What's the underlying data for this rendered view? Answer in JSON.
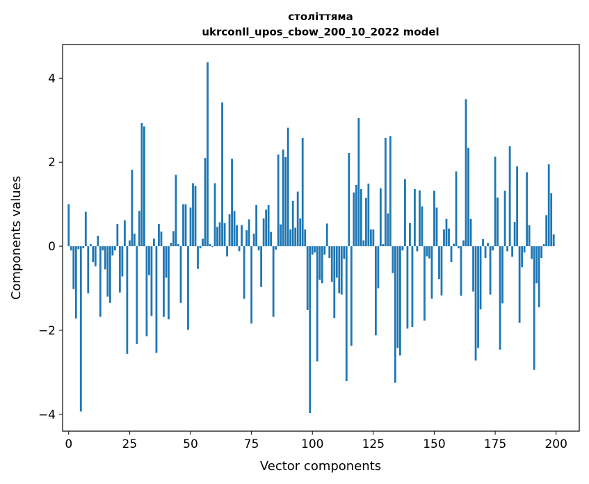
{
  "chart_data": {
    "type": "bar",
    "title_line1": "століттяма",
    "title_line2": "ukrconll_upos_cbow_200_10_2022 model",
    "xlabel": "Vector components",
    "ylabel": "Components values",
    "xlim": [
      -2.5,
      209.5
    ],
    "ylim": [
      -4.4,
      4.8
    ],
    "xticks": [
      0,
      25,
      50,
      75,
      100,
      125,
      150,
      175,
      200
    ],
    "yticks": [
      -4,
      -2,
      0,
      2,
      4
    ],
    "xtick_labels": [
      "0",
      "25",
      "50",
      "75",
      "100",
      "125",
      "150",
      "175",
      "200"
    ],
    "ytick_labels": [
      "−4",
      "−2",
      "0",
      "2",
      "4"
    ],
    "bar_color": "#1f77b4",
    "values": [
      1.0,
      -0.1,
      -1.02,
      -1.72,
      -0.07,
      -3.93,
      -0.05,
      0.82,
      -1.12,
      0.05,
      -0.38,
      -0.48,
      0.25,
      -1.68,
      -0.1,
      -0.55,
      -1.2,
      -1.35,
      -0.22,
      -0.1,
      0.53,
      -1.1,
      -0.72,
      0.62,
      -2.56,
      0.14,
      1.82,
      0.3,
      -2.33,
      0.84,
      2.93,
      2.85,
      -2.14,
      -0.69,
      -1.66,
      0.18,
      -2.54,
      0.53,
      0.35,
      -1.68,
      -0.75,
      -1.74,
      0.08,
      0.36,
      1.7,
      0.05,
      -1.35,
      1.0,
      1.0,
      -1.99,
      0.92,
      1.5,
      1.44,
      -0.54,
      -0.05,
      0.18,
      2.1,
      4.38,
      0.05,
      -0.02,
      1.5,
      0.46,
      0.57,
      3.42,
      0.55,
      -0.24,
      0.76,
      2.08,
      0.84,
      0.5,
      -0.12,
      0.5,
      -1.25,
      0.38,
      0.64,
      -1.84,
      0.3,
      0.98,
      -0.1,
      -0.97,
      0.66,
      0.87,
      0.98,
      0.34,
      -1.68,
      -0.08,
      2.18,
      0.52,
      2.3,
      2.12,
      2.82,
      0.4,
      1.08,
      0.44,
      1.3,
      0.66,
      2.58,
      0.4,
      -1.52,
      -3.97,
      -0.2,
      -0.15,
      -2.74,
      -0.8,
      -0.88,
      -0.2,
      0.54,
      -0.28,
      -0.85,
      -1.71,
      -0.75,
      -1.12,
      -1.15,
      -0.3,
      -3.21,
      2.22,
      -2.37,
      1.28,
      1.46,
      3.05,
      1.36,
      0.14,
      1.15,
      1.49,
      0.4,
      0.4,
      -2.12,
      -1.0,
      1.38,
      0.05,
      2.58,
      0.78,
      2.62,
      -0.64,
      -3.25,
      -2.42,
      -2.6,
      -0.1,
      1.6,
      -1.96,
      0.55,
      -1.92,
      1.36,
      -0.12,
      1.33,
      0.95,
      -1.77,
      -0.24,
      -0.29,
      -1.25,
      1.32,
      0.92,
      -0.78,
      -1.17,
      0.4,
      0.65,
      0.42,
      -0.38,
      0.06,
      1.78,
      -0.05,
      -1.18,
      0.14,
      3.5,
      2.34,
      0.65,
      -1.08,
      -2.72,
      -2.42,
      -1.5,
      0.17,
      -0.28,
      0.08,
      -1.15,
      -0.1,
      2.13,
      1.16,
      -2.46,
      -1.36,
      1.32,
      -0.12,
      2.38,
      -0.25,
      0.58,
      1.9,
      -1.82,
      -0.5,
      -0.15,
      1.76,
      0.5,
      -0.3,
      -2.94,
      -0.88,
      -1.45,
      -0.28,
      0.05,
      0.74,
      1.95,
      1.26,
      0.28
    ]
  }
}
